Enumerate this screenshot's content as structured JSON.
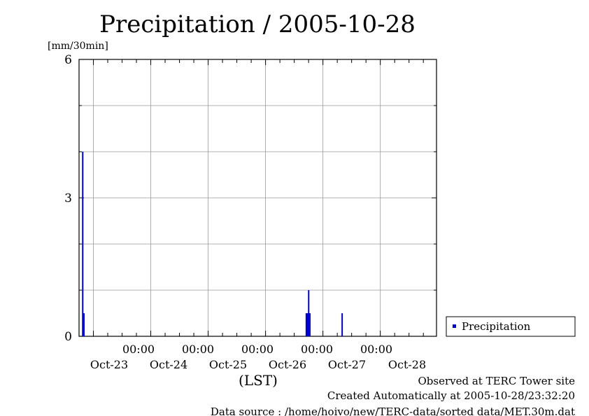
{
  "chart_data": {
    "type": "bar",
    "title": "Precipitation / 2005-10-28",
    "ylabel": "[mm/30min]",
    "xlabel": "(LST)",
    "ylim": [
      0,
      6
    ],
    "xlim": [
      "2005-10-22T18:00",
      "2005-10-28T23:30"
    ],
    "y_ticks": [
      "6",
      "3",
      "0"
    ],
    "x_ticks": [
      {
        "time": "00:00",
        "date": "Oct-23"
      },
      {
        "time": "00:00",
        "date": "Oct-24"
      },
      {
        "time": "00:00",
        "date": "Oct-25"
      },
      {
        "time": "00:00",
        "date": "Oct-26"
      },
      {
        "time": "00:00",
        "date": "Oct-27"
      },
      {
        "time": "00:00",
        "date": "Oct-28"
      }
    ],
    "grid": true,
    "legend_position": "right",
    "series": [
      {
        "name": "Precipitation",
        "color": "#0000cc",
        "points": [
          {
            "x": "2005-10-22T19:30",
            "y": 4.0
          },
          {
            "x": "2005-10-22T20:00",
            "y": 0.5
          },
          {
            "x": "2005-10-26T17:00",
            "y": 0.5
          },
          {
            "x": "2005-10-26T17:30",
            "y": 0.5
          },
          {
            "x": "2005-10-26T18:00",
            "y": 1.0
          },
          {
            "x": "2005-10-26T18:30",
            "y": 0.5
          },
          {
            "x": "2005-10-27T08:00",
            "y": 0.5
          }
        ]
      }
    ]
  },
  "legend": {
    "label": "Precipitation"
  },
  "footer": {
    "line1": "Observed at TERC Tower site",
    "line2": "Created Automatically at 2005-10-28/23:32:20",
    "line3": "Data source : /home/hoivo/new/TERC-data/sorted  data/MET.30m.dat"
  }
}
